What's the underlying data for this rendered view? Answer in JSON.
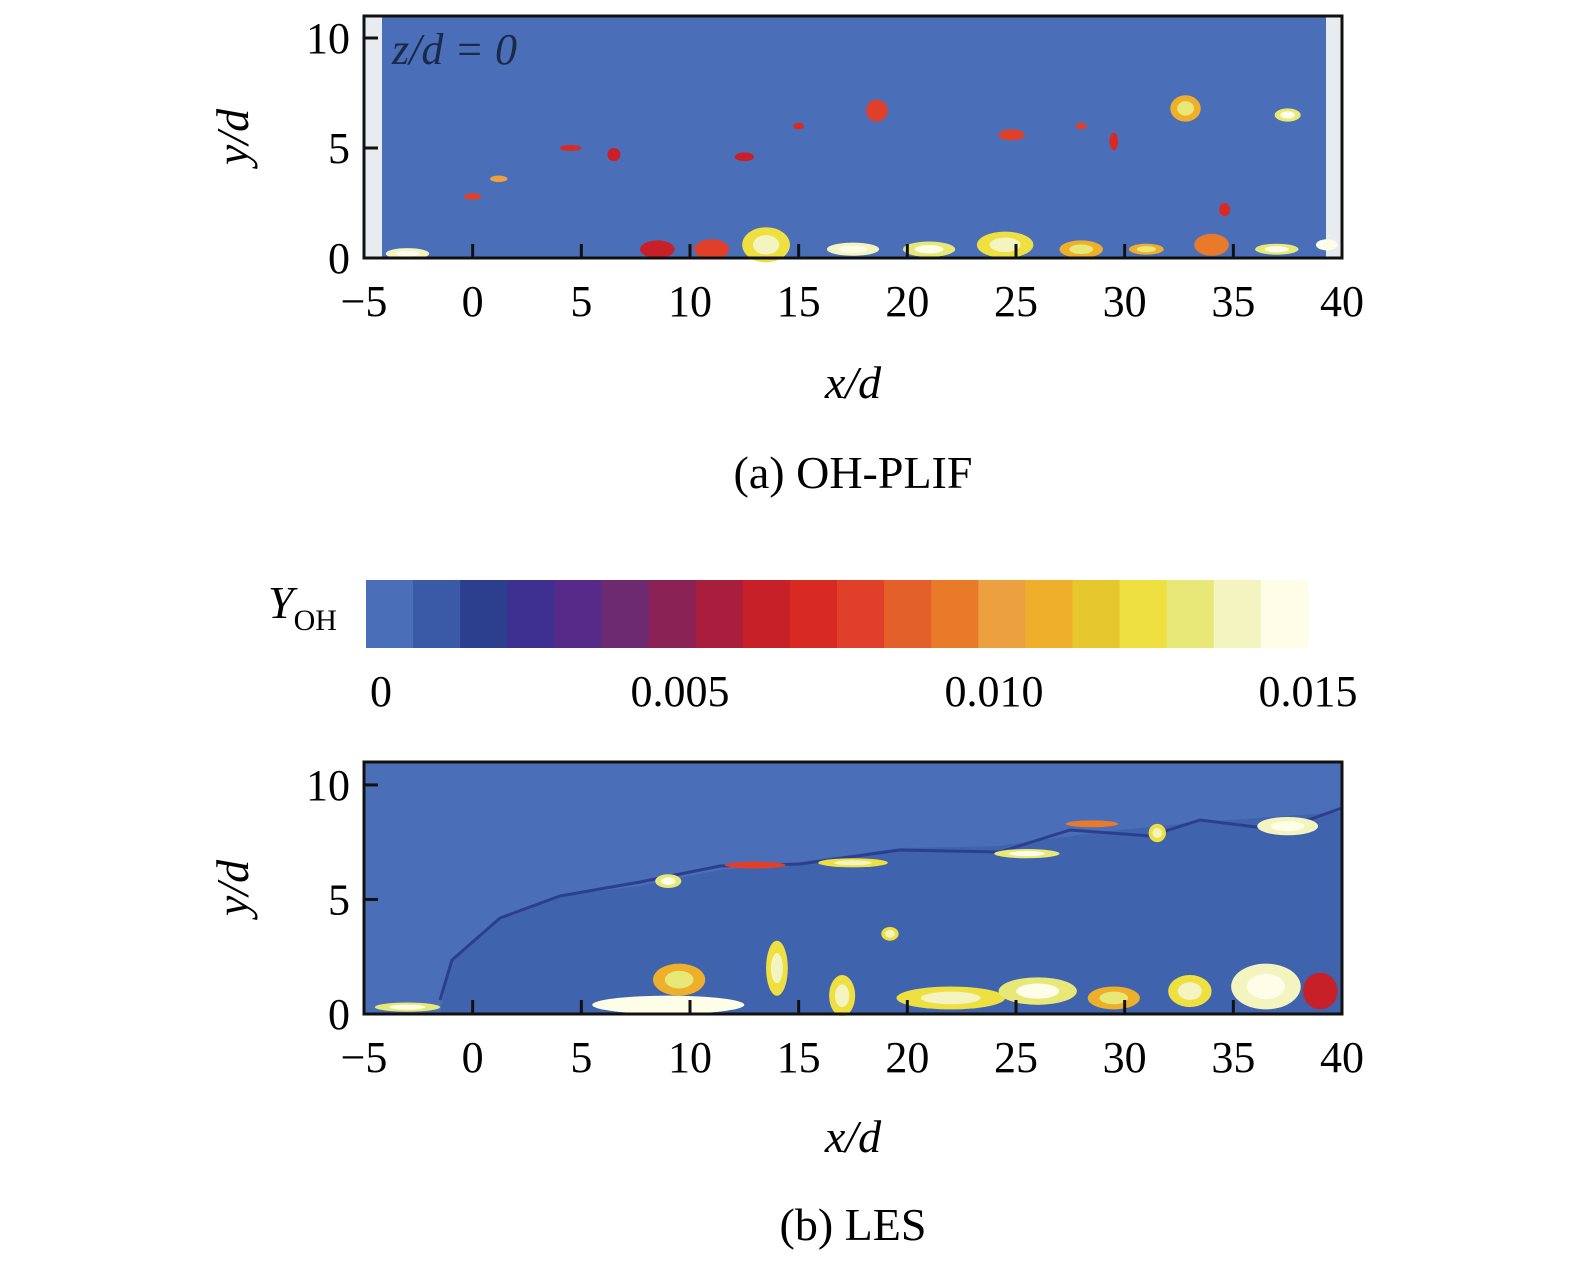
{
  "chart_data": [
    {
      "type": "heatmap",
      "panel": "a",
      "caption": "(a) OH-PLIF",
      "annotation": "z/d = 0",
      "xlabel": "x/d",
      "ylabel": "y/d",
      "xlim": [
        -5,
        40
      ],
      "ylim": [
        0,
        11
      ],
      "xticks": [
        -5,
        0,
        5,
        10,
        15,
        20,
        25,
        30,
        35,
        40
      ],
      "xtick_labels": [
        "−5",
        "0",
        "5",
        "10",
        "15",
        "20",
        "25",
        "30",
        "35",
        "40"
      ],
      "yticks": [
        0,
        5,
        10
      ],
      "ytick_labels": [
        "0",
        "5",
        "10"
      ],
      "field": "Y_OH",
      "features": [
        {
          "x": -3,
          "y": 0.2,
          "w": 2.0,
          "h": 0.5,
          "level": 0.014
        },
        {
          "x": 0,
          "y": 2.8,
          "w": 0.8,
          "h": 0.3,
          "level": 0.008
        },
        {
          "x": 1.2,
          "y": 3.6,
          "w": 0.8,
          "h": 0.3,
          "level": 0.01
        },
        {
          "x": 4.5,
          "y": 5.0,
          "w": 1.0,
          "h": 0.25,
          "level": 0.007
        },
        {
          "x": 6.5,
          "y": 4.7,
          "w": 0.6,
          "h": 0.6,
          "level": 0.006
        },
        {
          "x": 8.5,
          "y": 0.4,
          "w": 1.6,
          "h": 0.8,
          "level": 0.006
        },
        {
          "x": 11,
          "y": 0.4,
          "w": 1.6,
          "h": 0.9,
          "level": 0.008
        },
        {
          "x": 13.5,
          "y": 0.6,
          "w": 2.2,
          "h": 1.6,
          "level": 0.012
        },
        {
          "x": 12.5,
          "y": 4.6,
          "w": 0.9,
          "h": 0.4,
          "level": 0.006
        },
        {
          "x": 15,
          "y": 6.0,
          "w": 0.5,
          "h": 0.3,
          "level": 0.007
        },
        {
          "x": 17.5,
          "y": 0.4,
          "w": 2.4,
          "h": 0.6,
          "level": 0.014
        },
        {
          "x": 18.6,
          "y": 6.7,
          "w": 1.0,
          "h": 1.0,
          "level": 0.008
        },
        {
          "x": 21,
          "y": 0.4,
          "w": 2.4,
          "h": 0.7,
          "level": 0.013
        },
        {
          "x": 24.5,
          "y": 0.6,
          "w": 2.6,
          "h": 1.2,
          "level": 0.012
        },
        {
          "x": 24.8,
          "y": 5.6,
          "w": 1.2,
          "h": 0.5,
          "level": 0.008
        },
        {
          "x": 28,
          "y": 0.4,
          "w": 2.0,
          "h": 0.8,
          "level": 0.011
        },
        {
          "x": 28,
          "y": 6.0,
          "w": 0.5,
          "h": 0.3,
          "level": 0.008
        },
        {
          "x": 29.5,
          "y": 5.3,
          "w": 0.4,
          "h": 0.8,
          "level": 0.007
        },
        {
          "x": 31,
          "y": 0.4,
          "w": 1.6,
          "h": 0.5,
          "level": 0.011
        },
        {
          "x": 32.8,
          "y": 6.8,
          "w": 1.4,
          "h": 1.2,
          "level": 0.011
        },
        {
          "x": 34,
          "y": 0.6,
          "w": 1.6,
          "h": 1.0,
          "level": 0.009
        },
        {
          "x": 34.6,
          "y": 2.2,
          "w": 0.5,
          "h": 0.6,
          "level": 0.007
        },
        {
          "x": 37,
          "y": 0.4,
          "w": 2.0,
          "h": 0.5,
          "level": 0.013
        },
        {
          "x": 37.5,
          "y": 6.5,
          "w": 1.2,
          "h": 0.6,
          "level": 0.013
        },
        {
          "x": 39.3,
          "y": 0.6,
          "w": 1.0,
          "h": 0.5,
          "level": 0.015
        }
      ]
    },
    {
      "type": "heatmap",
      "panel": "b",
      "caption": "(b) LES",
      "xlabel": "x/d",
      "ylabel": "y/d",
      "xlim": [
        -5,
        40
      ],
      "ylim": [
        0,
        11
      ],
      "xticks": [
        -5,
        0,
        5,
        10,
        15,
        20,
        25,
        30,
        35,
        40
      ],
      "xtick_labels": [
        "−5",
        "0",
        "5",
        "10",
        "15",
        "20",
        "25",
        "30",
        "35",
        "40"
      ],
      "yticks": [
        0,
        5,
        10
      ],
      "ytick_labels": [
        "0",
        "5",
        "10"
      ],
      "field": "Y_OH",
      "features": [
        {
          "x": -3,
          "y": 0.3,
          "w": 3.0,
          "h": 0.4,
          "level": 0.013
        },
        {
          "x": 9.0,
          "y": 5.8,
          "w": 1.2,
          "h": 0.6,
          "level": 0.013
        },
        {
          "x": 13,
          "y": 6.5,
          "w": 2.8,
          "h": 0.3,
          "level": 0.008
        },
        {
          "x": 17.5,
          "y": 6.6,
          "w": 3.2,
          "h": 0.4,
          "level": 0.012
        },
        {
          "x": 19.2,
          "y": 3.5,
          "w": 0.8,
          "h": 0.6,
          "level": 0.012
        },
        {
          "x": 25.5,
          "y": 7.0,
          "w": 3.0,
          "h": 0.4,
          "level": 0.013
        },
        {
          "x": 28.5,
          "y": 8.3,
          "w": 2.4,
          "h": 0.3,
          "level": 0.009
        },
        {
          "x": 31.5,
          "y": 7.9,
          "w": 0.8,
          "h": 0.8,
          "level": 0.012
        },
        {
          "x": 37.5,
          "y": 8.2,
          "w": 2.8,
          "h": 0.8,
          "level": 0.014
        },
        {
          "x": 9.5,
          "y": 1.5,
          "w": 2.4,
          "h": 1.4,
          "level": 0.011
        },
        {
          "x": 9.0,
          "y": 0.4,
          "w": 7.0,
          "h": 0.8,
          "level": 0.015
        },
        {
          "x": 14.0,
          "y": 2.0,
          "w": 1.0,
          "h": 2.4,
          "level": 0.012
        },
        {
          "x": 17.0,
          "y": 0.8,
          "w": 1.2,
          "h": 1.8,
          "level": 0.012
        },
        {
          "x": 22.0,
          "y": 0.7,
          "w": 5.0,
          "h": 1.0,
          "level": 0.012
        },
        {
          "x": 26.0,
          "y": 1.0,
          "w": 3.6,
          "h": 1.2,
          "level": 0.013
        },
        {
          "x": 29.5,
          "y": 0.7,
          "w": 2.4,
          "h": 1.0,
          "level": 0.011
        },
        {
          "x": 33.0,
          "y": 1.0,
          "w": 2.0,
          "h": 1.4,
          "level": 0.012
        },
        {
          "x": 36.5,
          "y": 1.2,
          "w": 3.2,
          "h": 2.0,
          "level": 0.014
        },
        {
          "x": 39.0,
          "y": 1.0,
          "w": 1.6,
          "h": 1.6,
          "level": 0.006
        }
      ]
    }
  ],
  "colorbar": {
    "label_main": "Y",
    "label_sub": "OH",
    "range": [
      0,
      0.015
    ],
    "tick_values": [
      0,
      0.005,
      0.01,
      0.015
    ],
    "tick_labels": [
      "0",
      "0.005",
      "0.010",
      "0.015"
    ],
    "colors": [
      "#4a6fb8",
      "#3a5aa8",
      "#2c3f8e",
      "#3d3090",
      "#572a8a",
      "#6e2a70",
      "#8a2256",
      "#a81e3c",
      "#c82028",
      "#d82a22",
      "#e0402a",
      "#e4602a",
      "#e87a2a",
      "#eca040",
      "#eeb02a",
      "#e6c82e",
      "#eee040",
      "#e8e878",
      "#f4f4c0",
      "#fdfde8"
    ]
  }
}
